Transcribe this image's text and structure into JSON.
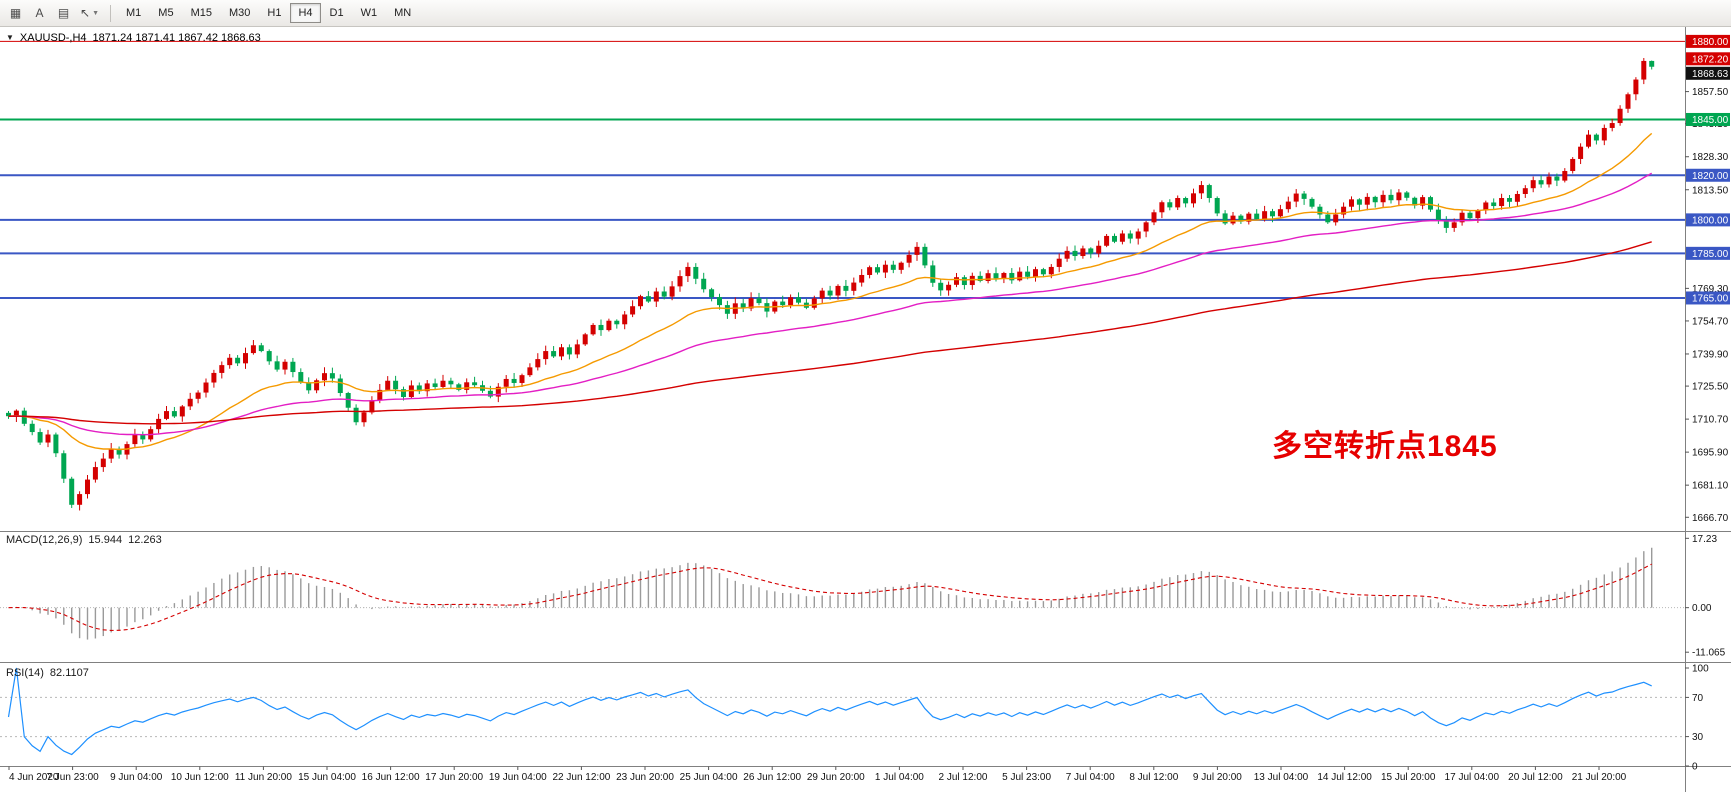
{
  "toolbar": {
    "icons": [
      {
        "name": "charts-grid-icon",
        "glyph": "▦"
      },
      {
        "name": "text-tool-icon",
        "glyph": "A"
      },
      {
        "name": "template-icon",
        "glyph": "▤"
      },
      {
        "name": "cursor-tool-icon",
        "glyph": "↖"
      }
    ],
    "timeframes": [
      "M1",
      "M5",
      "M15",
      "M30",
      "H1",
      "H4",
      "D1",
      "W1",
      "MN"
    ],
    "active_timeframe": "H4"
  },
  "chart_header": {
    "symbol_tf": "XAUUSD-,H4",
    "ohlc": "1871.24 1871.41 1867.42 1868.63"
  },
  "chart_data": {
    "type": "candlestick",
    "title": "XAUUSD-,H4",
    "symbol": "XAUUSD-",
    "timeframe": "H4",
    "last_ohlc": {
      "open": 1871.24,
      "high": 1871.41,
      "low": 1867.42,
      "close": 1868.63
    },
    "closes": [
      1712.0,
      1714.5,
      1708.6,
      1704.9,
      1700.2,
      1703.8,
      1695.4,
      1684.0,
      1672.3,
      1677.1,
      1683.6,
      1689.2,
      1693.0,
      1697.4,
      1694.8,
      1699.5,
      1703.9,
      1701.6,
      1706.2,
      1710.8,
      1714.3,
      1711.9,
      1716.4,
      1719.8,
      1722.6,
      1727.1,
      1731.4,
      1734.9,
      1738.2,
      1735.7,
      1740.3,
      1743.8,
      1741.2,
      1736.6,
      1732.9,
      1736.4,
      1731.8,
      1727.2,
      1723.6,
      1728.1,
      1731.3,
      1728.9,
      1722.4,
      1715.8,
      1709.3,
      1713.7,
      1719.2,
      1723.8,
      1727.9,
      1724.1,
      1720.6,
      1725.8,
      1723.2,
      1726.7,
      1725.1,
      1727.9,
      1726.3,
      1723.8,
      1727.2,
      1725.9,
      1723.4,
      1720.8,
      1725.2,
      1728.7,
      1726.9,
      1730.4,
      1733.9,
      1737.6,
      1741.2,
      1738.8,
      1742.9,
      1739.7,
      1744.2,
      1748.7,
      1752.9,
      1750.6,
      1754.8,
      1753.2,
      1757.6,
      1761.3,
      1765.8,
      1763.4,
      1767.9,
      1765.6,
      1770.2,
      1774.8,
      1778.9,
      1773.6,
      1768.9,
      1765.4,
      1761.8,
      1757.9,
      1762.6,
      1760.3,
      1764.9,
      1762.7,
      1758.9,
      1763.4,
      1761.8,
      1765.3,
      1762.9,
      1760.6,
      1764.8,
      1768.3,
      1766.1,
      1770.4,
      1768.2,
      1771.9,
      1775.3,
      1778.8,
      1776.4,
      1779.9,
      1777.6,
      1780.8,
      1784.3,
      1787.9,
      1779.6,
      1771.8,
      1768.4,
      1770.9,
      1774.3,
      1770.8,
      1774.9,
      1772.6,
      1776.1,
      1773.8,
      1776.2,
      1772.9,
      1776.8,
      1774.5,
      1777.9,
      1775.6,
      1778.9,
      1782.6,
      1786.1,
      1783.8,
      1787.2,
      1784.9,
      1788.4,
      1792.8,
      1790.2,
      1793.9,
      1791.6,
      1794.8,
      1798.9,
      1803.4,
      1807.9,
      1805.6,
      1809.8,
      1807.4,
      1811.9,
      1815.6,
      1809.8,
      1802.9,
      1798.4,
      1801.9,
      1799.2,
      1802.8,
      1800.4,
      1803.9,
      1801.6,
      1804.8,
      1808.2,
      1811.8,
      1809.4,
      1805.9,
      1802.4,
      1798.9,
      1802.4,
      1805.9,
      1809.2,
      1806.8,
      1810.3,
      1807.9,
      1811.2,
      1808.8,
      1812.3,
      1809.9,
      1806.4,
      1810.2,
      1804.6,
      1799.8,
      1796.4,
      1798.9,
      1803.2,
      1800.8,
      1804.2,
      1807.8,
      1806.2,
      1809.8,
      1808.1,
      1811.6,
      1814.2,
      1817.8,
      1815.9,
      1819.4,
      1817.6,
      1821.9,
      1827.3,
      1832.8,
      1838.2,
      1835.6,
      1841.2,
      1843.4,
      1849.8,
      1856.3,
      1862.9,
      1871.24,
      1868.63
    ],
    "x_labels": [
      "4 Jun 2020",
      "7 Jun 23:00",
      "9 Jun 04:00",
      "10 Jun 12:00",
      "11 Jun 20:00",
      "15 Jun 04:00",
      "16 Jun 12:00",
      "17 Jun 20:00",
      "19 Jun 04:00",
      "22 Jun 12:00",
      "23 Jun 20:00",
      "25 Jun 04:00",
      "26 Jun 12:00",
      "29 Jun 20:00",
      "1 Jul 04:00",
      "2 Jul 12:00",
      "5 Jul 23:00",
      "7 Jul 04:00",
      "8 Jul 12:00",
      "9 Jul 20:00",
      "13 Jul 04:00",
      "14 Jul 12:00",
      "15 Jul 20:00",
      "17 Jul 04:00",
      "20 Jul 12:00",
      "21 Jul 20:00"
    ],
    "y_axis": {
      "ticks": [
        1857.5,
        1843.1,
        1828.3,
        1813.5,
        1769.3,
        1754.7,
        1739.9,
        1725.5,
        1710.7,
        1695.9,
        1681.1,
        1666.7
      ],
      "min": 1661,
      "max": 1886
    },
    "hlines": [
      {
        "price": 1880.0,
        "label": "1880.00",
        "color": "#d40000",
        "width": 1
      },
      {
        "price": 1845.0,
        "label": "1845.00",
        "color": "#00a651",
        "width": 2
      },
      {
        "price": 1820.0,
        "label": "1820.00",
        "color": "#3a57c4",
        "width": 2
      },
      {
        "price": 1800.0,
        "label": "1800.00",
        "color": "#3a57c4",
        "width": 2
      },
      {
        "price": 1785.0,
        "label": "1785.00",
        "color": "#3a57c4",
        "width": 2
      },
      {
        "price": 1765.0,
        "label": "1765.00",
        "color": "#3a57c4",
        "width": 2
      }
    ],
    "price_markers": [
      {
        "price": 1872.2,
        "label": "1872.20",
        "bg": "#d40000"
      },
      {
        "price": 1868.63,
        "label": "1868.63",
        "bg": "#111111"
      }
    ],
    "moving_averages": [
      {
        "name": "fast",
        "color": "#f59a00",
        "period": 20
      },
      {
        "name": "medium",
        "color": "#e31fc4",
        "period": 50
      },
      {
        "name": "slow",
        "color": "#d40000",
        "period": 150
      }
    ],
    "candle_colors": {
      "up": "#d40000",
      "down": "#00a651"
    },
    "annotation": {
      "text": "多空转折点1845",
      "color": "#e60000"
    },
    "macd": {
      "name": "MACD(12,26,9)",
      "main_value": "15.944",
      "signal_value": "12.263",
      "ticks": [
        "17.23",
        "0.00",
        "-11.065"
      ],
      "tick_values": [
        17.23,
        0,
        -11.065
      ],
      "range": {
        "min": -13.5,
        "max": 18.8
      },
      "histogram_color": "#9a9a9a",
      "signal_color": "#d40000"
    },
    "rsi": {
      "name": "RSI(14)",
      "value": "82.1107",
      "ticks": [
        "100",
        "70",
        "30",
        "0"
      ],
      "tick_values": [
        100,
        70,
        30,
        0
      ],
      "levels": [
        70,
        30
      ],
      "color": "#1e90ff"
    }
  }
}
